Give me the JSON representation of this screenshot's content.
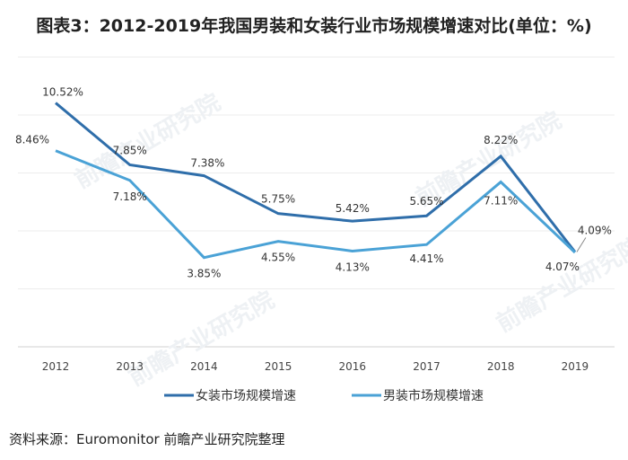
{
  "title": "图表3：2012-2019年我国男装和女装行业市场规模增速对比(单位：%)",
  "source": "资料来源：Euromonitor   前瞻产业研究院整理",
  "watermark": "前瞻产业研究院",
  "chart_data": {
    "type": "line",
    "title": "图表3：2012-2019年我国男装和女装行业市场规模增速对比(单位：%)",
    "categories": [
      "2012",
      "2013",
      "2014",
      "2015",
      "2016",
      "2017",
      "2018",
      "2019"
    ],
    "series": [
      {
        "name": "女装市场规模增速",
        "color": "#2f6eaa",
        "values": [
          10.52,
          7.85,
          7.38,
          5.75,
          5.42,
          5.65,
          8.22,
          4.09
        ],
        "labels": [
          "10.52%",
          "7.85%",
          "7.38%",
          "5.75%",
          "5.42%",
          "5.65%",
          "8.22%",
          "4.09%"
        ]
      },
      {
        "name": "男装市场规模增速",
        "color": "#4aa2d6",
        "values": [
          8.46,
          7.18,
          3.85,
          4.55,
          4.13,
          4.41,
          7.11,
          4.07
        ],
        "labels": [
          "8.46%",
          "7.18%",
          "3.85%",
          "4.55%",
          "4.13%",
          "4.41%",
          "7.11%",
          "4.07%"
        ]
      }
    ],
    "xlabel": "",
    "ylabel": "",
    "ylim": [
      0,
      12.5
    ],
    "grid": true,
    "legend": "bottom"
  }
}
